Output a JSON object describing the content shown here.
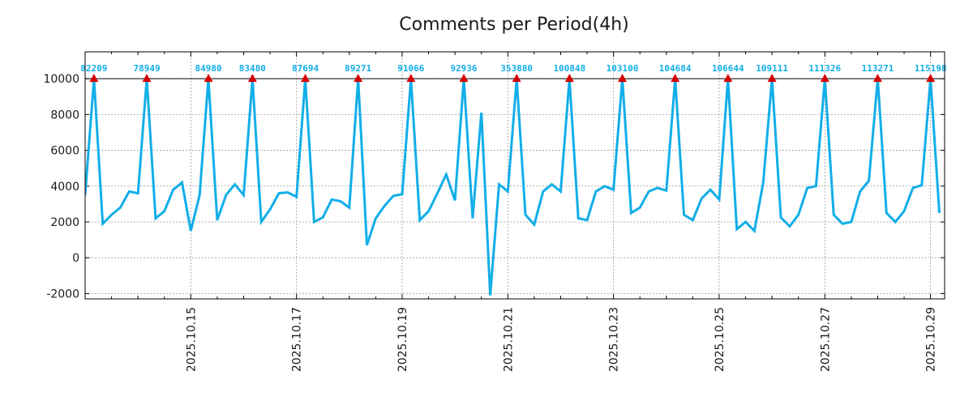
{
  "chart_data": {
    "type": "line",
    "title": "Comments per Period(4h)",
    "xlabel": "",
    "ylabel": "",
    "ylim": [
      -2300,
      11500
    ],
    "yticks": [
      -2000,
      0,
      2000,
      4000,
      6000,
      8000,
      10000
    ],
    "ytick_labels": [
      "-2000",
      "0",
      "2000",
      "4000",
      "6000",
      "8000",
      "10000"
    ],
    "grid": true,
    "clip_line_at": 10000,
    "x_start": "2025-10-14 00:00",
    "period_hours": 4,
    "xlim_periods": [
      0,
      97.6
    ],
    "xtick_positions_periods": [
      12,
      24,
      36,
      48,
      60,
      72,
      84,
      96
    ],
    "xtick_labels": [
      "2025.10.15",
      "2025.10.17",
      "2025.10.19",
      "2025.10.21",
      "2025.10.23",
      "2025.10.25",
      "2025.10.27",
      "2025.10.29"
    ],
    "line_color": "#12aee8",
    "marker_color": "#d40000",
    "series": [
      {
        "name": "Comments",
        "values": [
          3500,
          10000,
          1900,
          2400,
          2800,
          3700,
          3600,
          10000,
          2200,
          2600,
          3800,
          4200,
          1500,
          3500,
          10000,
          2100,
          3500,
          4100,
          3500,
          10000,
          2000,
          2700,
          3600,
          3650,
          3400,
          10000,
          2000,
          2250,
          3250,
          3150,
          2800,
          10000,
          700,
          2200,
          2900,
          3450,
          3550,
          10000,
          2100,
          2600,
          3600,
          4650,
          3200,
          10000,
          2200,
          8100,
          -2100,
          4100,
          3700,
          10000,
          2400,
          1850,
          3700,
          4100,
          3700,
          10000,
          2200,
          2100,
          3700,
          4000,
          3800,
          10000,
          2500,
          2800,
          3700,
          3900,
          3750,
          10000,
          2400,
          2100,
          3300,
          3800,
          3250,
          10000,
          1600,
          2000,
          1500,
          4200,
          10000,
          2250,
          1750,
          2400,
          3900,
          4000,
          10000,
          2400,
          1900,
          2000,
          3700,
          4300,
          10000,
          2500,
          2000,
          2600,
          3900,
          4050,
          10000,
          2500
        ]
      }
    ],
    "peaks": [
      {
        "x": 1,
        "value": 82209
      },
      {
        "x": 7,
        "value": 78949
      },
      {
        "x": 14,
        "value": 84980
      },
      {
        "x": 19,
        "value": 83480
      },
      {
        "x": 25,
        "value": 87694
      },
      {
        "x": 31,
        "value": 89271
      },
      {
        "x": 37,
        "value": 91066
      },
      {
        "x": 43,
        "value": 92936
      },
      {
        "x": 49,
        "value": 353880
      },
      {
        "x": 55,
        "value": 100848
      },
      {
        "x": 61,
        "value": 103100
      },
      {
        "x": 67,
        "value": 104684
      },
      {
        "x": 73,
        "value": 106644
      },
      {
        "x": 78,
        "value": 109111
      },
      {
        "x": 84,
        "value": 111326
      },
      {
        "x": 90,
        "value": 113271
      },
      {
        "x": 96,
        "value": 115198
      }
    ]
  }
}
